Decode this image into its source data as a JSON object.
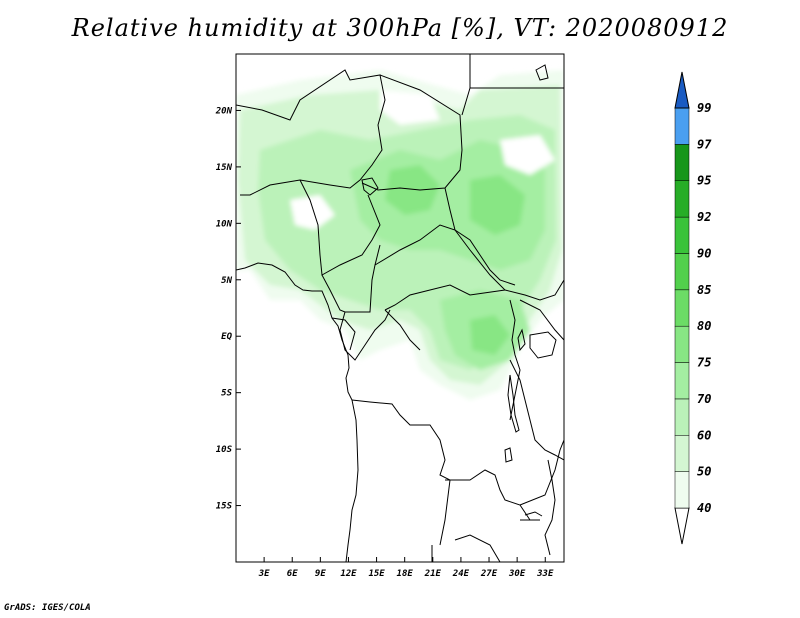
{
  "title": "Relative humidity at 300hPa [%], VT: 2020080912",
  "credit": "GrADS: IGES/COLA",
  "map": {
    "lon_range": [
      0,
      35
    ],
    "lat_range": [
      -20,
      25
    ],
    "lon_ticks": [
      "3E",
      "6E",
      "9E",
      "12E",
      "15E",
      "18E",
      "21E",
      "24E",
      "27E",
      "30E",
      "33E"
    ],
    "lon_tick_values": [
      3,
      6,
      9,
      12,
      15,
      18,
      21,
      24,
      27,
      30,
      33
    ],
    "lat_ticks": [
      "20N",
      "15N",
      "10N",
      "5N",
      "EQ",
      "5S",
      "10S",
      "15S"
    ],
    "lat_tick_values": [
      20,
      15,
      10,
      5,
      0,
      -5,
      -10,
      -15
    ]
  },
  "colorbar": {
    "levels": [
      "40",
      "50",
      "60",
      "70",
      "75",
      "80",
      "85",
      "90",
      "92",
      "95",
      "97",
      "99"
    ],
    "colors": [
      "#effcef",
      "#d4f6d2",
      "#bbf2b9",
      "#a4eea2",
      "#88e684",
      "#6cdc66",
      "#52d04c",
      "#3ac33a",
      "#27ad27",
      "#17961a",
      "#4a9ff0",
      "#2e7ee2",
      "#1a5bc2"
    ]
  },
  "chart_data": {
    "type": "heatmap",
    "title": "Relative humidity at 300hPa [%], VT: 2020080912",
    "variable": "Relative humidity",
    "units": "%",
    "level": "300hPa",
    "valid_time": "2020080912",
    "contour_levels": [
      40,
      50,
      60,
      70,
      75,
      80,
      85,
      90,
      92,
      95,
      97,
      99
    ],
    "xlim": [
      0,
      35
    ],
    "ylim": [
      -20,
      25
    ],
    "humid_regions": [
      {
        "lon": [
          1,
          24
        ],
        "lat": [
          10,
          24
        ],
        "value": 55
      },
      {
        "lon": [
          16,
          22
        ],
        "lat": [
          9,
          14
        ],
        "value": 72
      },
      {
        "lon": [
          24,
          33
        ],
        "lat": [
          8,
          23
        ],
        "value": 68
      },
      {
        "lon": [
          6,
          16
        ],
        "lat": [
          4,
          10
        ],
        "value": 55
      },
      {
        "lon": [
          20,
          30
        ],
        "lat": [
          -3,
          4
        ],
        "value": 70
      },
      {
        "lon": [
          14,
          21
        ],
        "lat": [
          -4,
          2
        ],
        "value": 48
      }
    ]
  }
}
